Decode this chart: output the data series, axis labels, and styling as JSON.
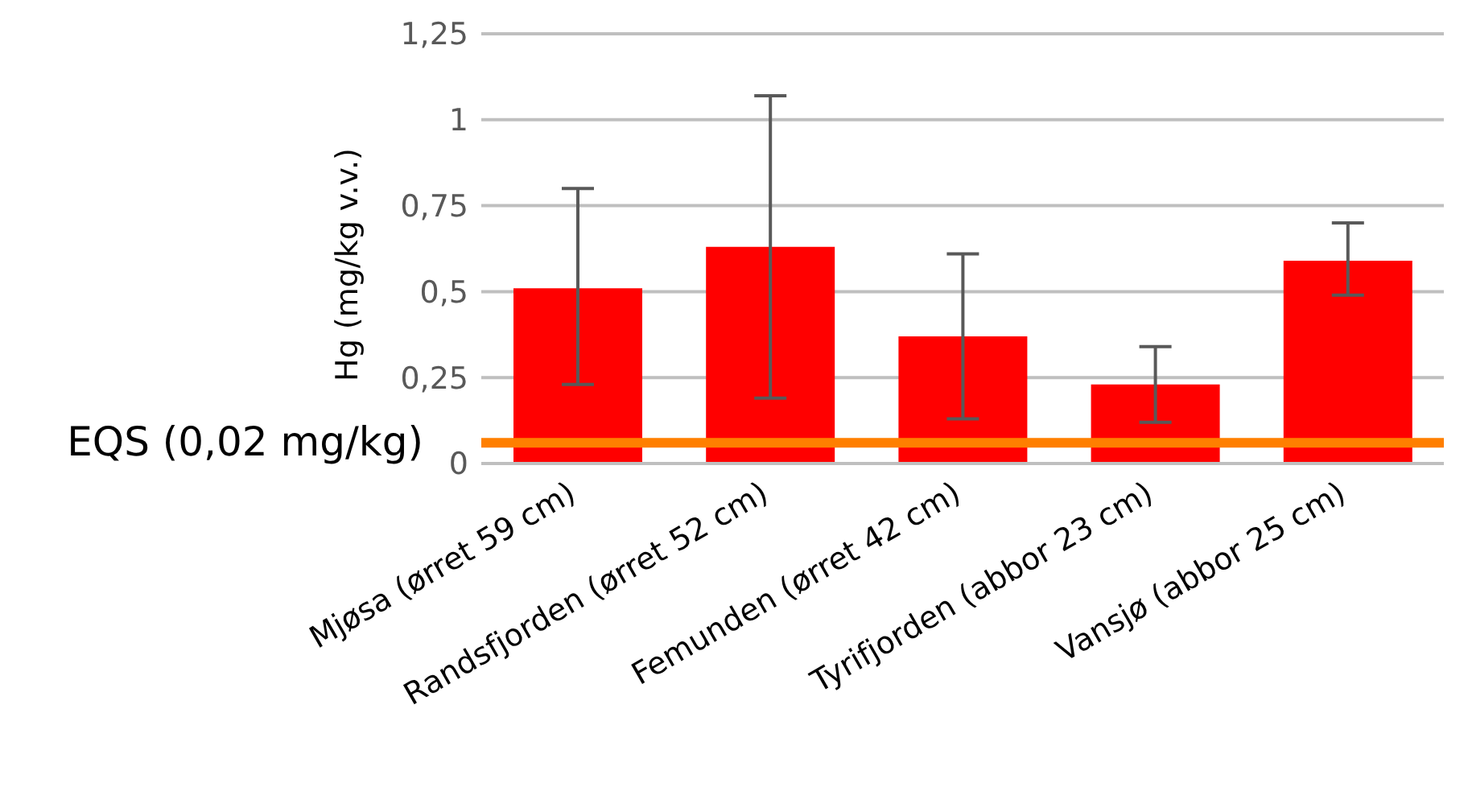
{
  "chart_data": {
    "type": "bar",
    "ylabel": "Hg (mg/kg v.v.)",
    "categories": [
      "Mjøsa (ørret 59 cm)",
      "Randsfjorden (ørret 52 cm)",
      "Femunden (ørret 42 cm)",
      "Tyrifjorden (abbor 23 cm)",
      "Vansjø (abbor 25 cm)"
    ],
    "values": [
      0.51,
      0.63,
      0.37,
      0.23,
      0.59
    ],
    "errors": [
      [
        0.23,
        0.8
      ],
      [
        0.19,
        1.07
      ],
      [
        0.13,
        0.61
      ],
      [
        0.12,
        0.34
      ],
      [
        0.49,
        0.7
      ]
    ],
    "color": "#ff0000",
    "ylim": [
      0,
      1.25
    ],
    "yticks": [
      {
        "value": 0,
        "label": "0"
      },
      {
        "value": 0.25,
        "label": "0,25"
      },
      {
        "value": 0.5,
        "label": "0,5"
      },
      {
        "value": 0.75,
        "label": "0,75"
      },
      {
        "value": 1,
        "label": "1"
      },
      {
        "value": 1.25,
        "label": "1,25"
      }
    ],
    "ref_lines": [
      {
        "axis": "y",
        "value": 0.06,
        "label": "EQS (0,02 mg/kg)",
        "color": "#ff7f00"
      }
    ],
    "grid": "y",
    "legend": false
  }
}
